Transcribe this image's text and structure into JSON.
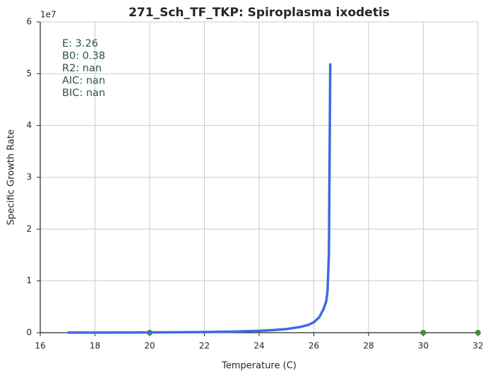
{
  "chart_data": {
    "type": "line",
    "title": "271_Sch_TF_TKP: Spiroplasma ixodetis",
    "xlabel": "Temperature (C)",
    "ylabel": "Specific Growth Rate",
    "y_offset_label": "1e7",
    "annotations": [
      "E:  3.26",
      "B0:  0.38",
      "R2:  nan",
      "AIC: nan",
      "BIC: nan"
    ],
    "xlim": [
      16,
      32
    ],
    "xticks": [
      16,
      18,
      20,
      22,
      24,
      26,
      28,
      30,
      32
    ],
    "ylim": [
      0,
      6
    ],
    "yticks": [
      0,
      1,
      2,
      3,
      4,
      5,
      6
    ],
    "grid": true,
    "series": [
      {
        "kind": "line",
        "color": "#4169e1",
        "x": [
          17,
          18,
          19,
          20,
          21,
          22,
          23,
          24,
          24.5,
          25,
          25.5,
          25.8,
          26,
          26.2,
          26.35,
          26.45,
          26.5,
          26.55,
          26.6
        ],
        "values": [
          0.001,
          0.002,
          0.003,
          0.005,
          0.008,
          0.012,
          0.02,
          0.035,
          0.05,
          0.07,
          0.11,
          0.15,
          0.2,
          0.3,
          0.45,
          0.6,
          0.8,
          1.5,
          5.2
        ]
      },
      {
        "kind": "scatter",
        "color": "#3a923a",
        "x": [
          20,
          30,
          32
        ],
        "values": [
          0,
          0,
          0
        ]
      }
    ]
  }
}
